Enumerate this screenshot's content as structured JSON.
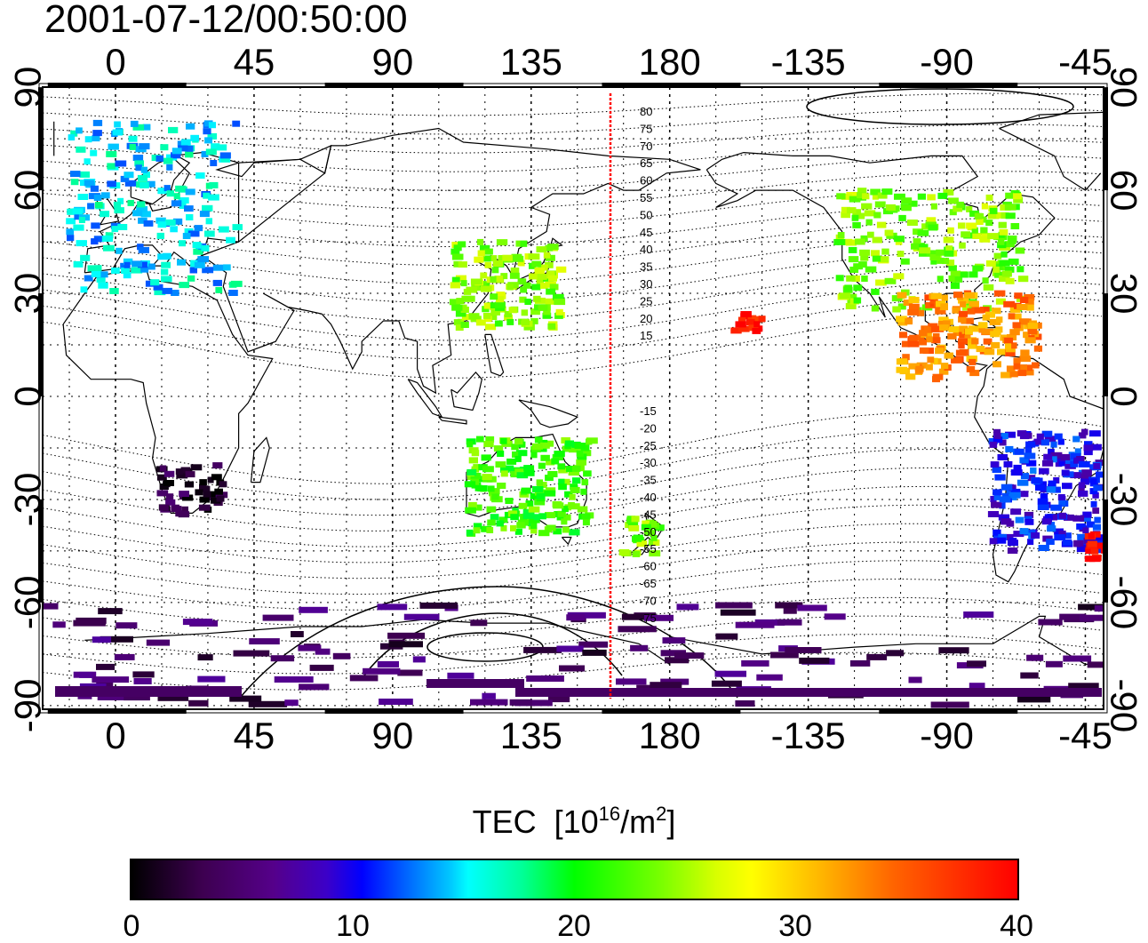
{
  "title": "2001-07-12/00:50:00",
  "colorbar": {
    "label_main": "TEC",
    "label_unit_prefix": "[10",
    "label_unit_exp1": "16",
    "label_unit_mid": "/m",
    "label_unit_exp2": "2",
    "label_unit_suffix": "]",
    "tick_labels": [
      "0",
      "10",
      "20",
      "30",
      "40"
    ],
    "range": [
      0,
      40
    ]
  },
  "chart_data": {
    "type": "heatmap",
    "title": "2001-07-12/00:50:00",
    "x_ticks": [
      "0",
      "45",
      "90",
      "135",
      "180",
      "-135",
      "-90",
      "-45"
    ],
    "y_ticks_left": [
      "90",
      "60",
      "30",
      "0",
      "-30",
      "-60",
      "-90"
    ],
    "y_ticks_right": [
      "90",
      "60",
      "30",
      "0",
      "-30",
      "-60",
      "-90"
    ],
    "longitude_range": [
      -22,
      338
    ],
    "latitude_range": [
      -93,
      93
    ],
    "grid": true,
    "magnetic_latitude_labels_north": [
      "80",
      "75",
      "70",
      "65",
      "60",
      "55",
      "50",
      "45",
      "40",
      "35",
      "30",
      "25",
      "20",
      "15"
    ],
    "magnetic_latitude_labels_south": [
      "-15",
      "-20",
      "-25",
      "-30",
      "-35",
      "-40",
      "-45",
      "-50",
      "-55",
      "-60",
      "-65",
      "-70",
      "-75"
    ],
    "colorbar_range": [
      0,
      40
    ],
    "tec_regions": [
      {
        "region": "Europe",
        "lon_range": [
          -15,
          40
        ],
        "lat_range": [
          30,
          80
        ],
        "tec": 15
      },
      {
        "region": "North America",
        "lon_range": [
          -125,
          -65
        ],
        "lat_range": [
          25,
          60
        ],
        "tec": 24
      },
      {
        "region": "East Asia",
        "lon_range": [
          110,
          145
        ],
        "lat_range": [
          20,
          45
        ],
        "tec": 24
      },
      {
        "region": "Central America / Caribbean",
        "lon_range": [
          -105,
          -60
        ],
        "lat_range": [
          5,
          30
        ],
        "tec": 33
      },
      {
        "region": "Hawaii",
        "lon_range": [
          -160,
          -150
        ],
        "lat_range": [
          18,
          24
        ],
        "tec": 39
      },
      {
        "region": "Australia",
        "lon_range": [
          115,
          155
        ],
        "lat_range": [
          -40,
          -12
        ],
        "tec": 22
      },
      {
        "region": "New Zealand",
        "lon_range": [
          165,
          178
        ],
        "lat_range": [
          -47,
          -35
        ],
        "tec": 24
      },
      {
        "region": "Southern Africa",
        "lon_range": [
          15,
          35
        ],
        "lat_range": [
          -35,
          -20
        ],
        "tec": 2
      },
      {
        "region": "Southern South America",
        "lon_range": [
          -75,
          -40
        ],
        "lat_range": [
          -45,
          -10
        ],
        "tec": 10
      },
      {
        "region": "South Atlantic",
        "lon_range": [
          -45,
          -33
        ],
        "lat_range": [
          -48,
          -40
        ],
        "tec": 40
      },
      {
        "region": "Antarctica",
        "lon_range": [
          -180,
          180
        ],
        "lat_range": [
          -90,
          -60
        ],
        "tec": 4
      }
    ],
    "red_vertical_line_longitude": 168
  }
}
